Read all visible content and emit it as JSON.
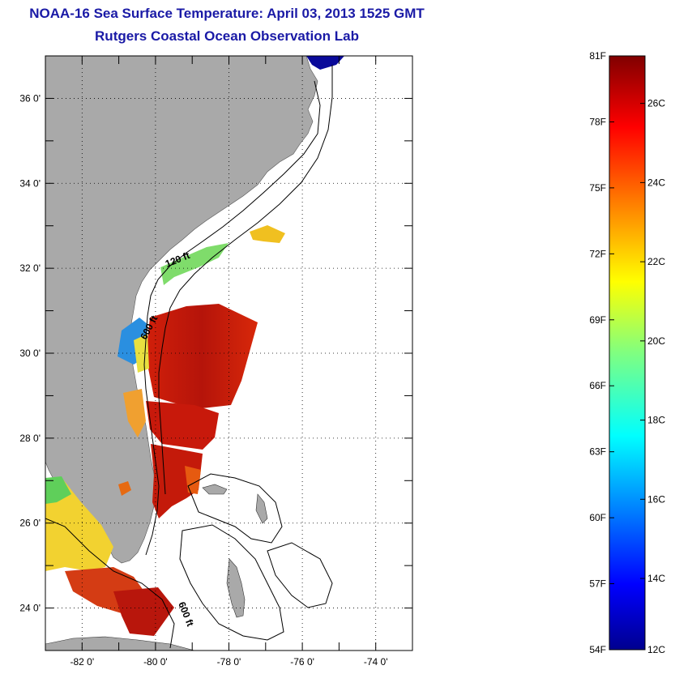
{
  "title": {
    "line1": "NOAA-16 Sea Surface Temperature:  April 03, 2013 1525 GMT",
    "line2": "Rutgers Coastal Ocean Observation Lab"
  },
  "map": {
    "lon_range": [
      -83,
      -73
    ],
    "lat_range": [
      23,
      37
    ],
    "lon_ticks": [
      {
        "value": -82,
        "label": "-82 0'"
      },
      {
        "value": -80,
        "label": "-80 0'"
      },
      {
        "value": -78,
        "label": "-78 0'"
      },
      {
        "value": -76,
        "label": "-76 0'"
      },
      {
        "value": -74,
        "label": "-74 0'"
      }
    ],
    "lat_ticks": [
      {
        "value": 24,
        "label": "24 0'"
      },
      {
        "value": 26,
        "label": "26 0'"
      },
      {
        "value": 28,
        "label": "28 0'"
      },
      {
        "value": 30,
        "label": "30 0'"
      },
      {
        "value": 32,
        "label": "32 0'"
      },
      {
        "value": 34,
        "label": "34 0'"
      },
      {
        "value": 36,
        "label": "36 0'"
      }
    ],
    "contour_labels": [
      "120 ft",
      "600 ft",
      "600 ft"
    ],
    "land_color": "#a9a9a9",
    "grid": "dotted"
  },
  "colorbar": {
    "fahrenheit_labels": [
      "81F",
      "78F",
      "75F",
      "72F",
      "69F",
      "66F",
      "63F",
      "60F",
      "57F",
      "54F"
    ],
    "celsius_labels": [
      "26C",
      "24C",
      "22C",
      "20C",
      "18C",
      "16C",
      "14C",
      "12C"
    ],
    "colors": [
      "#00008f",
      "#0000ff",
      "#0080ff",
      "#00ffff",
      "#80ff80",
      "#ffff00",
      "#ff8000",
      "#ff0000",
      "#800000"
    ]
  }
}
